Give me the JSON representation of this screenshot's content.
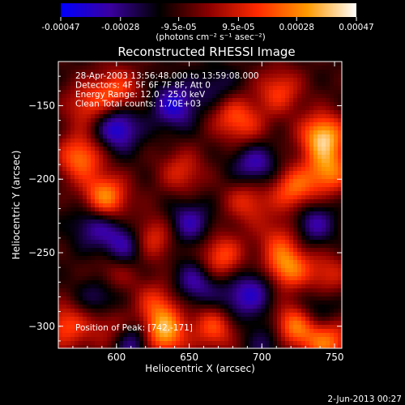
{
  "chart_data": {
    "type": "heatmap",
    "title": "Reconstructed RHESSI Image",
    "xlabel": "Heliocentric X (arcsec)",
    "ylabel": "Heliocentric Y (arcsec)",
    "xlim": [
      560,
      755
    ],
    "ylim": [
      -315,
      -120
    ],
    "x_ticks": [
      600,
      650,
      700,
      750
    ],
    "y_ticks": [
      -150,
      -200,
      -250,
      -300
    ],
    "colorbar": {
      "ticks": [
        "-0.00047",
        "-0.00028",
        "-9.5e-05",
        "9.5e-05",
        "0.00028",
        "0.00047"
      ],
      "range": [
        -0.00047,
        0.00047
      ],
      "unit_label": "(photons cm⁻² s⁻¹ asec⁻²)",
      "colors": [
        "#0000ff",
        "#3a00a0",
        "#000000",
        "#8a0000",
        "#ff2a00",
        "#ff9a00",
        "#ffffff"
      ]
    },
    "annotations": [
      "28-Apr-2003 13:56:48.000 to 13:59:08.000",
      "Detectors: 4F 5F 6F 7F 8F, Att 0",
      "Energy Range: 12.0 - 25.0 keV",
      "Clean    Total counts: 1.70E+03"
    ],
    "peak_text": "Position of Peak: [742,-171]",
    "peak": [
      742,
      -171
    ],
    "footer_date": "2-Jun-2013 00:27",
    "sources": [
      {
        "x": 742,
        "y": -171,
        "v": 1.0
      },
      {
        "x": 746,
        "y": -195,
        "v": 0.75
      },
      {
        "x": 722,
        "y": -207,
        "v": 0.7
      },
      {
        "x": 712,
        "y": -140,
        "v": 0.55
      },
      {
        "x": 678,
        "y": -155,
        "v": 0.5
      },
      {
        "x": 600,
        "y": -140,
        "v": 0.6
      },
      {
        "x": 580,
        "y": -150,
        "v": 0.5
      },
      {
        "x": 575,
        "y": -185,
        "v": 0.75
      },
      {
        "x": 592,
        "y": -213,
        "v": 0.9
      },
      {
        "x": 645,
        "y": -195,
        "v": 0.45
      },
      {
        "x": 690,
        "y": -215,
        "v": 0.5
      },
      {
        "x": 625,
        "y": -240,
        "v": 0.55
      },
      {
        "x": 672,
        "y": -253,
        "v": 0.65
      },
      {
        "x": 717,
        "y": -260,
        "v": 0.8
      },
      {
        "x": 745,
        "y": -265,
        "v": 0.45
      },
      {
        "x": 598,
        "y": -265,
        "v": 0.4
      },
      {
        "x": 628,
        "y": -285,
        "v": 0.5
      },
      {
        "x": 668,
        "y": -300,
        "v": 0.65
      },
      {
        "x": 722,
        "y": -300,
        "v": 0.85
      },
      {
        "x": 745,
        "y": -310,
        "v": 0.75
      },
      {
        "x": 632,
        "y": -305,
        "v": 0.95
      },
      {
        "x": 595,
        "y": -300,
        "v": 0.45
      },
      {
        "x": 565,
        "y": -300,
        "v": 0.6
      },
      {
        "x": 690,
        "y": -165,
        "v": 0.35
      },
      {
        "x": 712,
        "y": -240,
        "v": 0.4
      },
      {
        "x": 600,
        "y": -165,
        "v": -0.7
      },
      {
        "x": 640,
        "y": -150,
        "v": -0.6
      },
      {
        "x": 670,
        "y": -140,
        "v": -0.35
      },
      {
        "x": 695,
        "y": -190,
        "v": -0.55
      },
      {
        "x": 650,
        "y": -230,
        "v": -0.5
      },
      {
        "x": 605,
        "y": -245,
        "v": -0.55
      },
      {
        "x": 695,
        "y": -275,
        "v": -0.45
      },
      {
        "x": 585,
        "y": -230,
        "v": -0.5
      },
      {
        "x": 590,
        "y": -280,
        "v": -0.45
      },
      {
        "x": 655,
        "y": -270,
        "v": -0.5
      },
      {
        "x": 735,
        "y": -230,
        "v": -0.5
      },
      {
        "x": 738,
        "y": -290,
        "v": -0.4
      },
      {
        "x": 612,
        "y": -310,
        "v": -0.55
      },
      {
        "x": 705,
        "y": -310,
        "v": -0.35
      },
      {
        "x": 680,
        "y": -285,
        "v": -0.35
      }
    ]
  }
}
